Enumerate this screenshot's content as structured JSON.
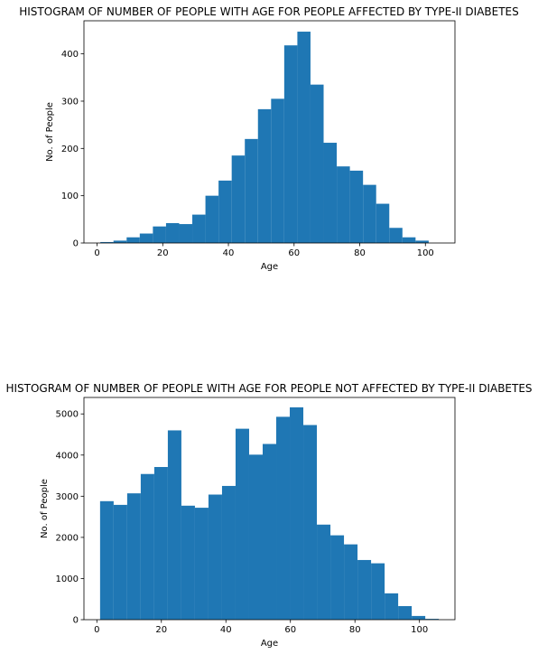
{
  "chart_data": [
    {
      "type": "bar",
      "histogram": true,
      "title": "HISTOGRAM OF NUMBER OF PEOPLE WITH AGE FOR PEOPLE AFFECTED BY TYPE-II DIABETES",
      "xlabel": "Age",
      "ylabel": "No. of People",
      "xlim": [
        -4,
        109
      ],
      "ylim": [
        0,
        470
      ],
      "xticks": [
        0,
        20,
        40,
        60,
        80,
        100
      ],
      "yticks": [
        0,
        100,
        200,
        300,
        400
      ],
      "bin_edges": [
        1,
        5,
        9,
        13,
        17,
        21,
        25,
        29,
        33,
        37,
        41,
        45,
        49,
        53,
        57,
        61,
        65,
        69,
        73,
        77,
        81,
        85,
        89,
        93,
        97,
        101,
        105
      ],
      "values": [
        2,
        5,
        12,
        20,
        35,
        42,
        40,
        60,
        100,
        132,
        185,
        220,
        283,
        305,
        418,
        447,
        335,
        212,
        162,
        153,
        123,
        83,
        32,
        12,
        5,
        0
      ],
      "color": "#1f77b4",
      "grid": false
    },
    {
      "type": "bar",
      "histogram": true,
      "title": "HISTOGRAM OF NUMBER OF PEOPLE WITH AGE FOR PEOPLE NOT AFFECTED BY TYPE-II DIABETES",
      "xlabel": "Age",
      "ylabel": "No. of People",
      "xlim": [
        -4,
        111
      ],
      "ylim": [
        0,
        5400
      ],
      "xticks": [
        0,
        20,
        40,
        60,
        80,
        100
      ],
      "yticks": [
        0,
        1000,
        2000,
        3000,
        4000,
        5000
      ],
      "bin_edges": [
        1,
        5.2,
        9.4,
        13.6,
        17.8,
        22,
        26.2,
        30.4,
        34.6,
        38.8,
        43,
        47.2,
        51.4,
        55.6,
        59.8,
        64,
        68.2,
        72.4,
        76.6,
        80.8,
        85,
        89.2,
        93.4,
        97.6,
        101.8,
        106
      ],
      "values": [
        2880,
        2790,
        3070,
        3540,
        3710,
        4600,
        2770,
        2720,
        3040,
        3250,
        4640,
        4010,
        4270,
        4930,
        5160,
        4730,
        2310,
        2050,
        1830,
        1450,
        1370,
        640,
        330,
        90,
        20
      ],
      "color": "#1f77b4",
      "grid": false
    }
  ]
}
